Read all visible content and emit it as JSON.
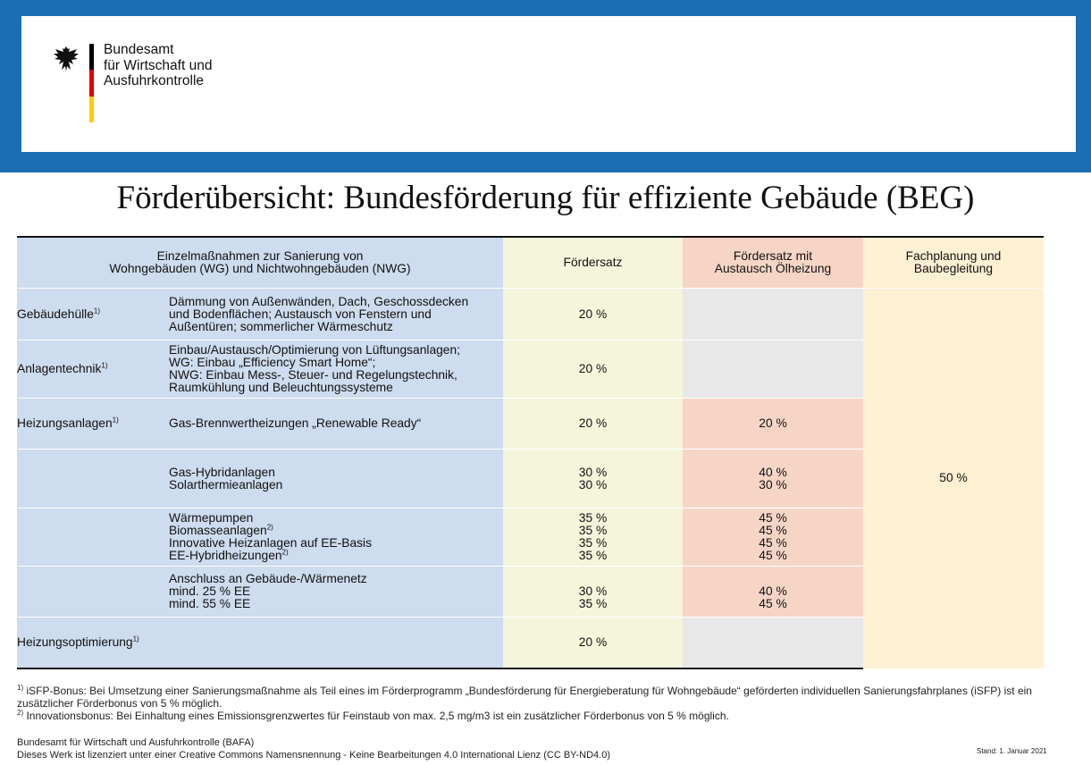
{
  "header": {
    "agency_line1": "Bundesamt",
    "agency_line2": "für Wirtschaft und",
    "agency_line3": "Ausfuhrkontrolle",
    "colors": {
      "band": "#1c6eb4",
      "flag_black": "#000000",
      "flag_red": "#dd0000",
      "flag_gold": "#ffce00"
    }
  },
  "title": "Förderübersicht: Bundesförderung für effiziente Gebäude (BEG)",
  "table": {
    "headers": {
      "measures_line1": "Einzelmaßnahmen zur Sanierung von",
      "measures_line2": "Wohngebäuden (WG) und Nichtwohngebäuden (NWG)",
      "rate": "Fördersatz",
      "oil_line1": "Fördersatz mit",
      "oil_line2": "Austausch Ölheizung",
      "planning_line1": "Fachplanung und",
      "planning_line2": "Baubegleitung"
    },
    "planning_value": "50 %",
    "rows": [
      {
        "category": "Gebäudehülle",
        "sup": "1)",
        "desc": [
          "Dämmung von Außenwänden, Dach, Geschossdecken",
          "und Bodenflächen; Austausch von Fenstern und",
          "Außentüren; sommerlicher Wärmeschutz"
        ],
        "rate": [
          "20 %"
        ],
        "oil": []
      },
      {
        "category": "Anlagentechnik",
        "sup": "1)",
        "desc": [
          "Einbau/Austausch/Optimierung von Lüftungsanlagen;",
          "WG: Einbau „Efficiency Smart Home“;",
          "NWG: Einbau Mess-, Steuer- und Regelungstechnik,",
          "Raumkühlung und Beleuchtungssysteme"
        ],
        "rate": [
          "20 %"
        ],
        "oil": []
      },
      {
        "category": "Heizungsanlagen",
        "sup": "1)",
        "desc": [
          "Gas-Brennwertheizungen „Renewable Ready“"
        ],
        "rate": [
          "20 %"
        ],
        "oil": [
          "20 %"
        ]
      },
      {
        "category": "",
        "sup": "",
        "desc": [
          "Gas-Hybridanlagen",
          "Solarthermieanlagen"
        ],
        "rate": [
          "30 %",
          "30 %"
        ],
        "oil": [
          "40 %",
          "30 %"
        ]
      },
      {
        "category": "",
        "sup": "",
        "desc": [
          "Wärmepumpen",
          "Biomasseanlagen",
          "Innovative Heizanlagen auf EE-Basis",
          "EE-Hybridheizungen"
        ],
        "desc_sup": [
          "",
          "2)",
          "",
          "2)"
        ],
        "rate": [
          "35 %",
          "35 %",
          "35 %",
          "35 %"
        ],
        "oil": [
          "45 %",
          "45 %",
          "45 %",
          "45 %"
        ]
      },
      {
        "category": "",
        "sup": "",
        "desc": [
          "Anschluss an Gebäude-/Wärmenetz",
          "mind. 25 % EE",
          "mind. 55 % EE"
        ],
        "rate": [
          "30 %",
          "35 %"
        ],
        "oil": [
          "40 %",
          "45 %"
        ]
      },
      {
        "category": "Heizungsoptimierung",
        "sup": "1)",
        "desc": [],
        "rate": [
          "20 %"
        ],
        "oil": []
      }
    ]
  },
  "notes": {
    "n1_sup": "1)",
    "n1_text": " iSFP-Bonus: Bei Umsetzung einer Sanierungsmaßnahme als Teil eines im Förderprogramm „Bundesförderung für Energieberatung für Wohngebäude“ geförderten individuellen Sanierungsfahrplanes (iSFP) ist ein zusätzlicher Förderbonus von 5 % möglich.",
    "n2_sup": "2)",
    "n2_text": " Innovationsbonus: Bei Einhaltung eines Emissionsgrenzwertes für Feinstaub von max. 2,5 mg/m3 ist ein zusätzlicher Förderbonus von 5 % möglich."
  },
  "footer": {
    "line1": "Bundesamt für Wirtschaft und Ausfuhrkontrolle (BAFA)",
    "line2": "Dieses Werk ist lizenziert unter einer Creative Commons Namensnennung - Keine Bearbeitungen 4.0 International Lienz (CC BY-ND4.0)",
    "stand": "Stand: 1. Januar 2021"
  }
}
